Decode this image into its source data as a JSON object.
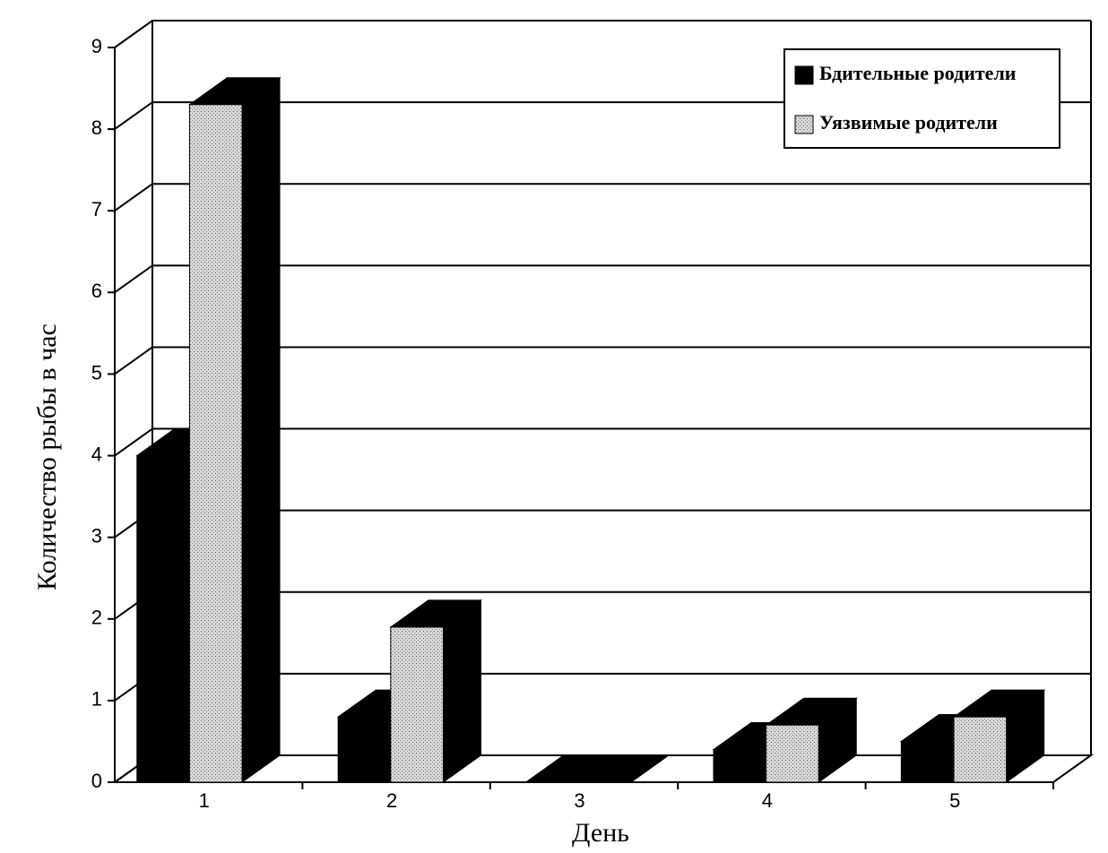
{
  "chart_data": {
    "type": "bar3d",
    "x_label": "День",
    "y_label": "Количество рыбы в час",
    "categories": [
      "1",
      "2",
      "3",
      "4",
      "5"
    ],
    "series": [
      {
        "name": "Бдительные родители",
        "color": "#000000",
        "values": [
          4,
          0.8,
          0,
          0.4,
          0.5
        ]
      },
      {
        "name": "Уязвимые родители",
        "color": "#c4c4c4",
        "values": [
          8.3,
          1.9,
          0,
          0.7,
          0.8
        ]
      }
    ],
    "ylim": [
      0,
      9
    ],
    "yticks": [
      0,
      1,
      2,
      3,
      4,
      5,
      6,
      7,
      8,
      9
    ],
    "grid": true,
    "legend": "upper right"
  }
}
